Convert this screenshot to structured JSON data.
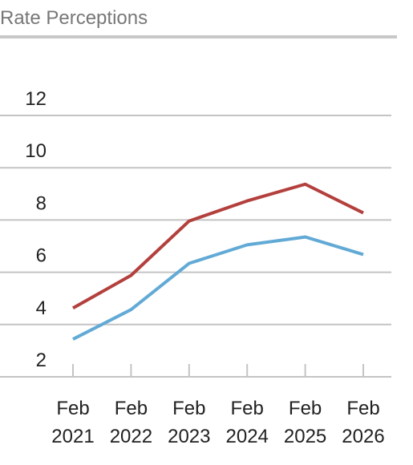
{
  "chart_data": {
    "type": "line",
    "title": "Rate Perceptions",
    "categories": [
      "Feb 2021",
      "Feb 2022",
      "Feb 2023",
      "Feb 2024",
      "Feb 2025",
      "Feb 2026"
    ],
    "series": [
      {
        "color": "#b3403d",
        "values": [
          4.63,
          5.88,
          7.96,
          8.73,
          9.37,
          8.27
        ]
      },
      {
        "color": "#62aad6",
        "values": [
          3.44,
          4.57,
          6.34,
          7.05,
          7.35,
          6.68
        ]
      }
    ],
    "ylim": [
      2,
      12
    ],
    "yticks": [
      2,
      4,
      6,
      8,
      10,
      12
    ],
    "grid": true
  }
}
